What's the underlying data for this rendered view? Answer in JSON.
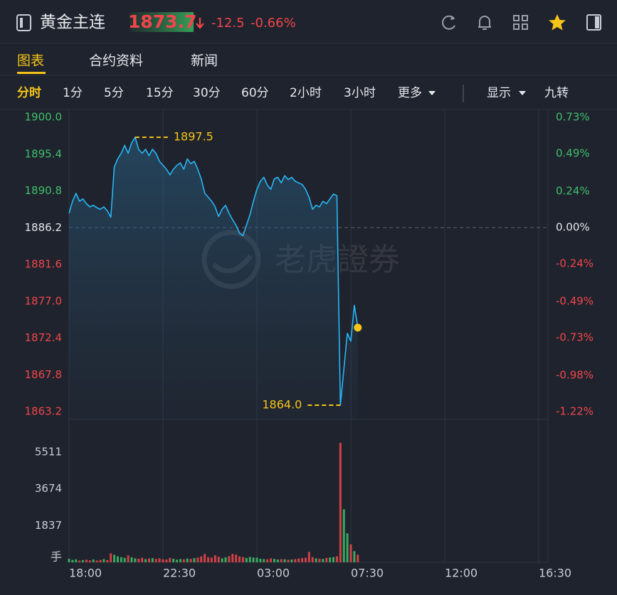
{
  "header": {
    "symbol": "黄金主连",
    "price": 1873.7,
    "change": -12.5,
    "change_pct": "-0.66%"
  },
  "tabs": [
    "图表",
    "合约资料",
    "新闻"
  ],
  "periods": [
    "分时",
    "1分",
    "5分",
    "15分",
    "30分",
    "60分",
    "2小时",
    "3小时",
    "更多"
  ],
  "options": [
    "显示",
    "九转"
  ],
  "watermark": "老虎證券",
  "chart_data": {
    "type": "line",
    "color": "#29b6f6",
    "up_color": "#3fbf6b",
    "down_color": "#f0464b",
    "x": [
      "18:00",
      "18:10",
      "18:20",
      "18:30",
      "18:40",
      "18:50",
      "19:00",
      "19:10",
      "19:20",
      "19:30",
      "19:40",
      "19:50",
      "20:00",
      "20:10",
      "20:20",
      "20:30",
      "20:40",
      "20:50",
      "21:00",
      "21:10",
      "21:20",
      "21:30",
      "21:40",
      "21:50",
      "22:00",
      "22:10",
      "22:20",
      "22:30",
      "22:40",
      "22:50",
      "23:00",
      "23:10",
      "23:20",
      "23:30",
      "23:40",
      "23:50",
      "00:00",
      "00:10",
      "00:20",
      "00:30",
      "00:40",
      "00:50",
      "01:00",
      "01:10",
      "01:20",
      "01:30",
      "01:40",
      "01:50",
      "02:00",
      "02:10",
      "02:20",
      "02:30",
      "02:40",
      "02:50",
      "03:00",
      "03:10",
      "03:20",
      "03:30",
      "03:40",
      "03:50",
      "04:00",
      "04:10",
      "04:20",
      "04:30",
      "04:40",
      "04:50",
      "05:00",
      "05:10",
      "05:20",
      "05:30",
      "05:40",
      "05:50",
      "06:00",
      "06:10",
      "06:20",
      "06:30",
      "06:40",
      "06:50",
      "07:00",
      "07:10",
      "07:20",
      "07:30",
      "07:40",
      "07:50"
    ],
    "values": [
      1888.0,
      1889.5,
      1890.5,
      1889.5,
      1889.8,
      1889.2,
      1888.8,
      1889.0,
      1888.7,
      1888.5,
      1888.8,
      1888.3,
      1887.5,
      1893.8,
      1894.8,
      1895.5,
      1896.5,
      1895.5,
      1896.8,
      1897.5,
      1896.0,
      1895.5,
      1896.0,
      1895.2,
      1896.0,
      1895.5,
      1894.5,
      1894.0,
      1893.5,
      1892.8,
      1893.5,
      1894.0,
      1894.3,
      1893.5,
      1894.8,
      1894.2,
      1894.5,
      1893.5,
      1892.3,
      1890.5,
      1890.0,
      1889.5,
      1888.8,
      1887.6,
      1888.5,
      1889.0,
      1888.0,
      1887.2,
      1886.5,
      1885.5,
      1885.2,
      1886.5,
      1887.8,
      1889.5,
      1891.0,
      1892.0,
      1892.5,
      1891.5,
      1891.0,
      1892.3,
      1892.5,
      1891.8,
      1892.7,
      1892.2,
      1892.5,
      1892.0,
      1891.8,
      1891.6,
      1891.0,
      1890.0,
      1888.5,
      1889.0,
      1888.8,
      1889.5,
      1889.2,
      1889.8,
      1890.4,
      1890.2,
      1864.0,
      1868.5,
      1873.0,
      1872.0,
      1876.5,
      1873.7
    ],
    "xlim": [
      "18:00",
      "16:30"
    ],
    "xticks": [
      "18:00",
      "22:30",
      "03:00",
      "07:30",
      "12:00",
      "16:30"
    ],
    "ylim": [
      1863.2,
      1900.0
    ],
    "yticks": [
      {
        "value": 1900,
        "label": "1900.0"
      },
      1895.4,
      1890.8,
      1886.2,
      1881.6,
      {
        "value": 1877,
        "label": "1877.0"
      },
      1872.4,
      1867.8,
      1863.2
    ],
    "prev_close": 1886.2,
    "y2lim": [
      -1.22,
      0.73
    ],
    "y2ticks": [
      {
        "value": 0.73,
        "label": "0.73%"
      },
      {
        "value": 0.49,
        "label": "0.49%"
      },
      {
        "value": 0.24,
        "label": "0.24%"
      },
      {
        "value": 0,
        "label": "0.00%"
      },
      {
        "value": -0.24,
        "label": "-0.24%"
      },
      {
        "value": -0.49,
        "label": "-0.49%"
      },
      {
        "value": -0.73,
        "label": "-0.73%"
      },
      {
        "value": -0.98,
        "label": "-0.98%"
      },
      {
        "value": -1.22,
        "label": "-1.22%"
      }
    ],
    "annotations": [
      {
        "value": 1897.5
      },
      {
        "value": 1864,
        "label": "1864.0"
      }
    ],
    "volume": {
      "unit": "手",
      "ylim": [
        0,
        6900
      ],
      "yticks": [
        1837,
        3674,
        5511
      ],
      "values": [
        180,
        120,
        150,
        90,
        110,
        130,
        100,
        140,
        90,
        120,
        160,
        110,
        450,
        380,
        300,
        260,
        220,
        350,
        250,
        200,
        180,
        230,
        160,
        190,
        210,
        170,
        200,
        150,
        140,
        220,
        180,
        130,
        160,
        150,
        190,
        170,
        210,
        240,
        300,
        420,
        260,
        230,
        350,
        280,
        200,
        250,
        310,
        420,
        380,
        300,
        260,
        220,
        270,
        240,
        230,
        180,
        160,
        150,
        200,
        170,
        140,
        160,
        150,
        130,
        140,
        160,
        190,
        210,
        230,
        520,
        260,
        200,
        180,
        170,
        220,
        240,
        260,
        300,
        5980,
        2650,
        1450,
        900,
        560,
        380
      ]
    }
  }
}
